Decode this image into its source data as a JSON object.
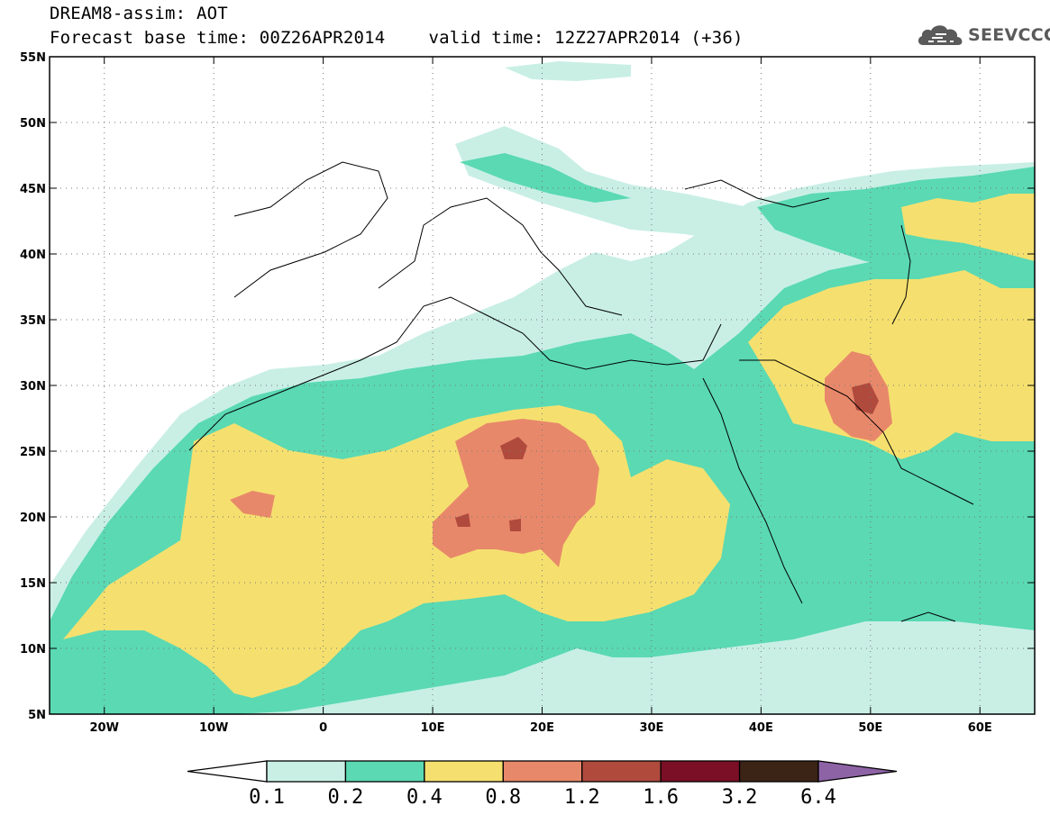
{
  "header": {
    "title": "DREAM8-assim: AOT",
    "base_label": "Forecast base time: 00Z26APR2014",
    "valid_label": "valid time: 12Z27APR2014 (+36)"
  },
  "logo": {
    "text": "SEEVCCC",
    "icon": "cloud-icon"
  },
  "map": {
    "lon_range": [
      -25,
      65
    ],
    "lat_range": [
      5,
      55
    ],
    "lon_ticks": [
      {
        "v": -20,
        "label": "20W"
      },
      {
        "v": -10,
        "label": "10W"
      },
      {
        "v": 0,
        "label": "0"
      },
      {
        "v": 10,
        "label": "10E"
      },
      {
        "v": 20,
        "label": "20E"
      },
      {
        "v": 30,
        "label": "30E"
      },
      {
        "v": 40,
        "label": "40E"
      },
      {
        "v": 50,
        "label": "50E"
      },
      {
        "v": 60,
        "label": "60E"
      }
    ],
    "lat_ticks": [
      {
        "v": 5,
        "label": "5N"
      },
      {
        "v": 10,
        "label": "10N"
      },
      {
        "v": 15,
        "label": "15N"
      },
      {
        "v": 20,
        "label": "20N"
      },
      {
        "v": 25,
        "label": "25N"
      },
      {
        "v": 30,
        "label": "30N"
      },
      {
        "v": 35,
        "label": "35N"
      },
      {
        "v": 40,
        "label": "40N"
      },
      {
        "v": 45,
        "label": "45N"
      },
      {
        "v": 50,
        "label": "50N"
      },
      {
        "v": 55,
        "label": "55N"
      }
    ],
    "grid_lines": "dotted"
  },
  "colorbar": {
    "labels": [
      "0.1",
      "0.2",
      "0.4",
      "0.8",
      "1.2",
      "1.6",
      "3.2",
      "6.4"
    ],
    "colors": [
      "#ffffff",
      "#c9efe5",
      "#5ad9b3",
      "#f5e06f",
      "#e8886a",
      "#b04a3d",
      "#7a0f26",
      "#3b2416",
      "#8e63a6"
    ]
  }
}
